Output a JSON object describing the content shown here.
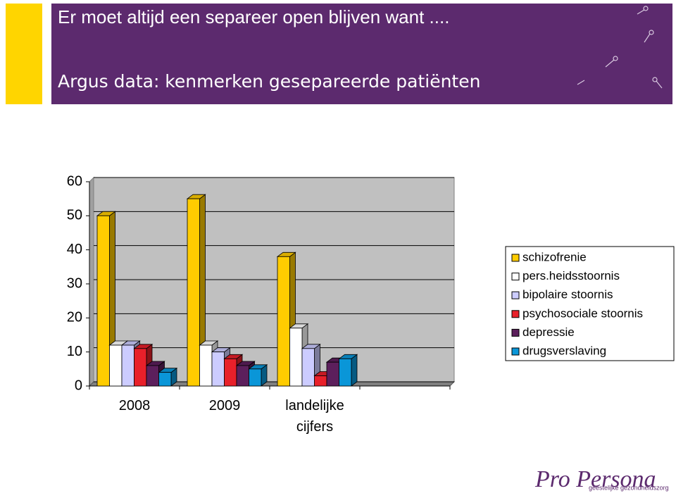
{
  "header": {
    "title": "Er moet altijd een separeer open blijven want ....",
    "subtitle": "Argus data: kenmerken gesepareerde patiënten"
  },
  "chart_data": {
    "type": "bar",
    "categories": [
      "2008",
      "2009",
      "landelijke cijfers",
      null
    ],
    "series": [
      {
        "name": "schizofrenie",
        "color": "#ffcc00",
        "values": [
          50,
          55,
          38,
          null
        ]
      },
      {
        "name": "pers.heidsstoornis",
        "color": "#ffffff",
        "values": [
          12,
          12,
          17,
          null
        ]
      },
      {
        "name": "bipolaire stoornis",
        "color": "#ccccff",
        "values": [
          12,
          10,
          11,
          null
        ]
      },
      {
        "name": "psychosociale stoornis",
        "color": "#e8202a",
        "values": [
          11,
          8,
          3,
          null
        ]
      },
      {
        "name": "depressie",
        "color": "#5c1f5c",
        "values": [
          6,
          6,
          7,
          null
        ]
      },
      {
        "name": "drugsverslaving",
        "color": "#0a96d8",
        "values": [
          4,
          5,
          8,
          null
        ]
      }
    ],
    "ylim": [
      0,
      60
    ],
    "yticks": [
      0,
      10,
      20,
      30,
      40,
      50,
      60
    ],
    "grid": true
  },
  "logo": {
    "name": "Pro Persona",
    "tagline": "geestelijke gezondheidszorg"
  }
}
